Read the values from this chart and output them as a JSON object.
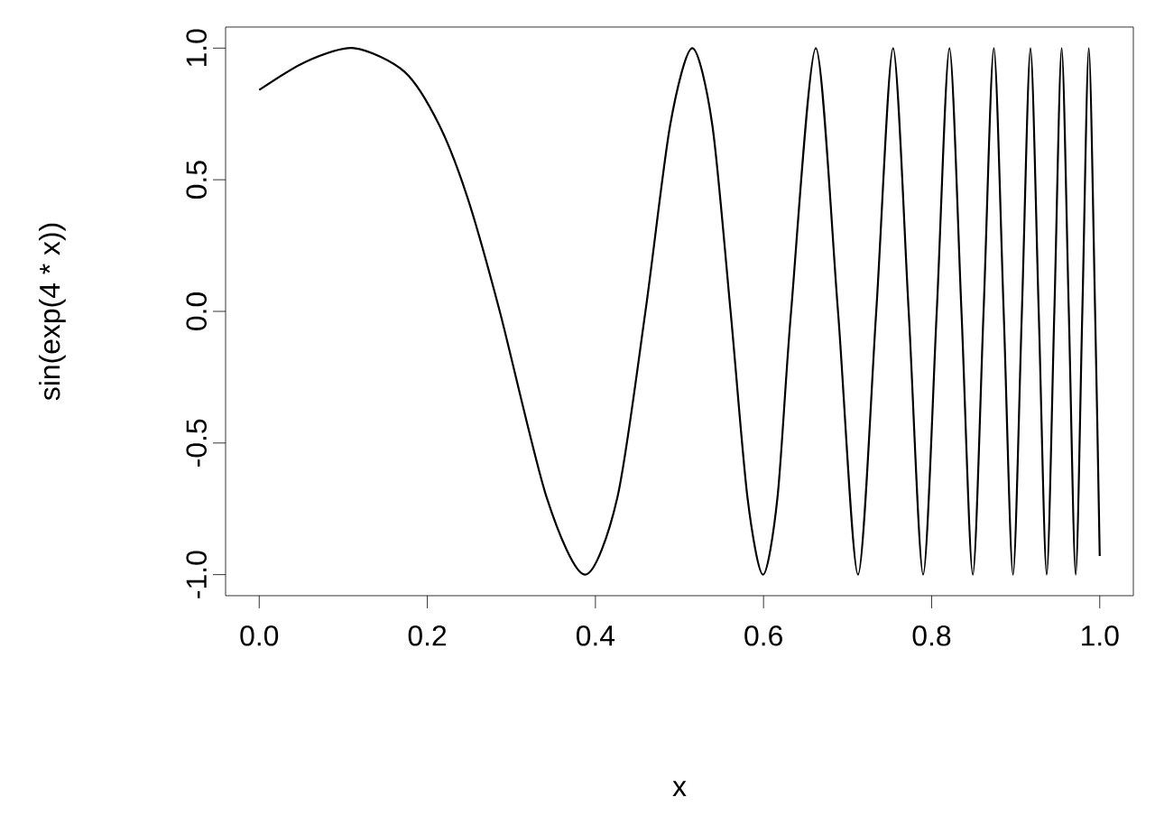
{
  "chart_data": {
    "type": "line",
    "xlabel": "x",
    "ylabel": "sin(exp(4 * x))",
    "x": [
      0,
      0.0558,
      0.1129,
      0.1733,
      0.2143,
      0.2483,
      0.2862,
      0.342,
      0.3876,
      0.4261,
      0.4595,
      0.4889,
      0.5153,
      0.5391,
      0.5608,
      0.5809,
      0.5994,
      0.6166,
      0.6328,
      0.6622,
      0.6886,
      0.7124,
      0.7341,
      0.7541,
      0.7727,
      0.7899,
      0.8061,
      0.8212,
      0.8355,
      0.849,
      0.8618,
      0.874,
      0.8857,
      0.8968,
      0.9074,
      0.9176,
      0.9274,
      0.9369,
      0.946,
      0.9547,
      0.9632,
      0.9714,
      0.9793,
      0.987,
      0.9945,
      1
    ],
    "series": [
      {
        "color": "#000000",
        "values": [
          0.841,
          0.949,
          1,
          0.909,
          0.707,
          0.427,
          0,
          -0.707,
          -1,
          -0.707,
          0,
          0.707,
          1,
          0.707,
          0,
          -0.707,
          -1,
          -0.707,
          0,
          1,
          0,
          -1,
          0,
          1,
          0,
          -1,
          0,
          1,
          0,
          -1,
          0,
          1,
          0,
          -1,
          0,
          1,
          0,
          -1,
          0,
          1,
          0,
          -1,
          0,
          1,
          0,
          -0.929
        ]
      }
    ],
    "xlim": [
      -0.04,
      1.04
    ],
    "ylim": [
      -1.08,
      1.08
    ],
    "xticks": [
      {
        "value": 0,
        "label": "0.0"
      },
      {
        "value": 0.2,
        "label": "0.2"
      },
      {
        "value": 0.4,
        "label": "0.4"
      },
      {
        "value": 0.6,
        "label": "0.6"
      },
      {
        "value": 0.8,
        "label": "0.8"
      },
      {
        "value": 1,
        "label": "1.0"
      }
    ],
    "yticks": [
      {
        "value": -1,
        "label": "-1.0"
      },
      {
        "value": -0.5,
        "label": "-0.5"
      },
      {
        "value": 0,
        "label": "0.0"
      },
      {
        "value": 0.5,
        "label": "0.5"
      },
      {
        "value": 1,
        "label": "1.0"
      }
    ],
    "marker": "none",
    "line_style": "solid",
    "grid": false
  }
}
